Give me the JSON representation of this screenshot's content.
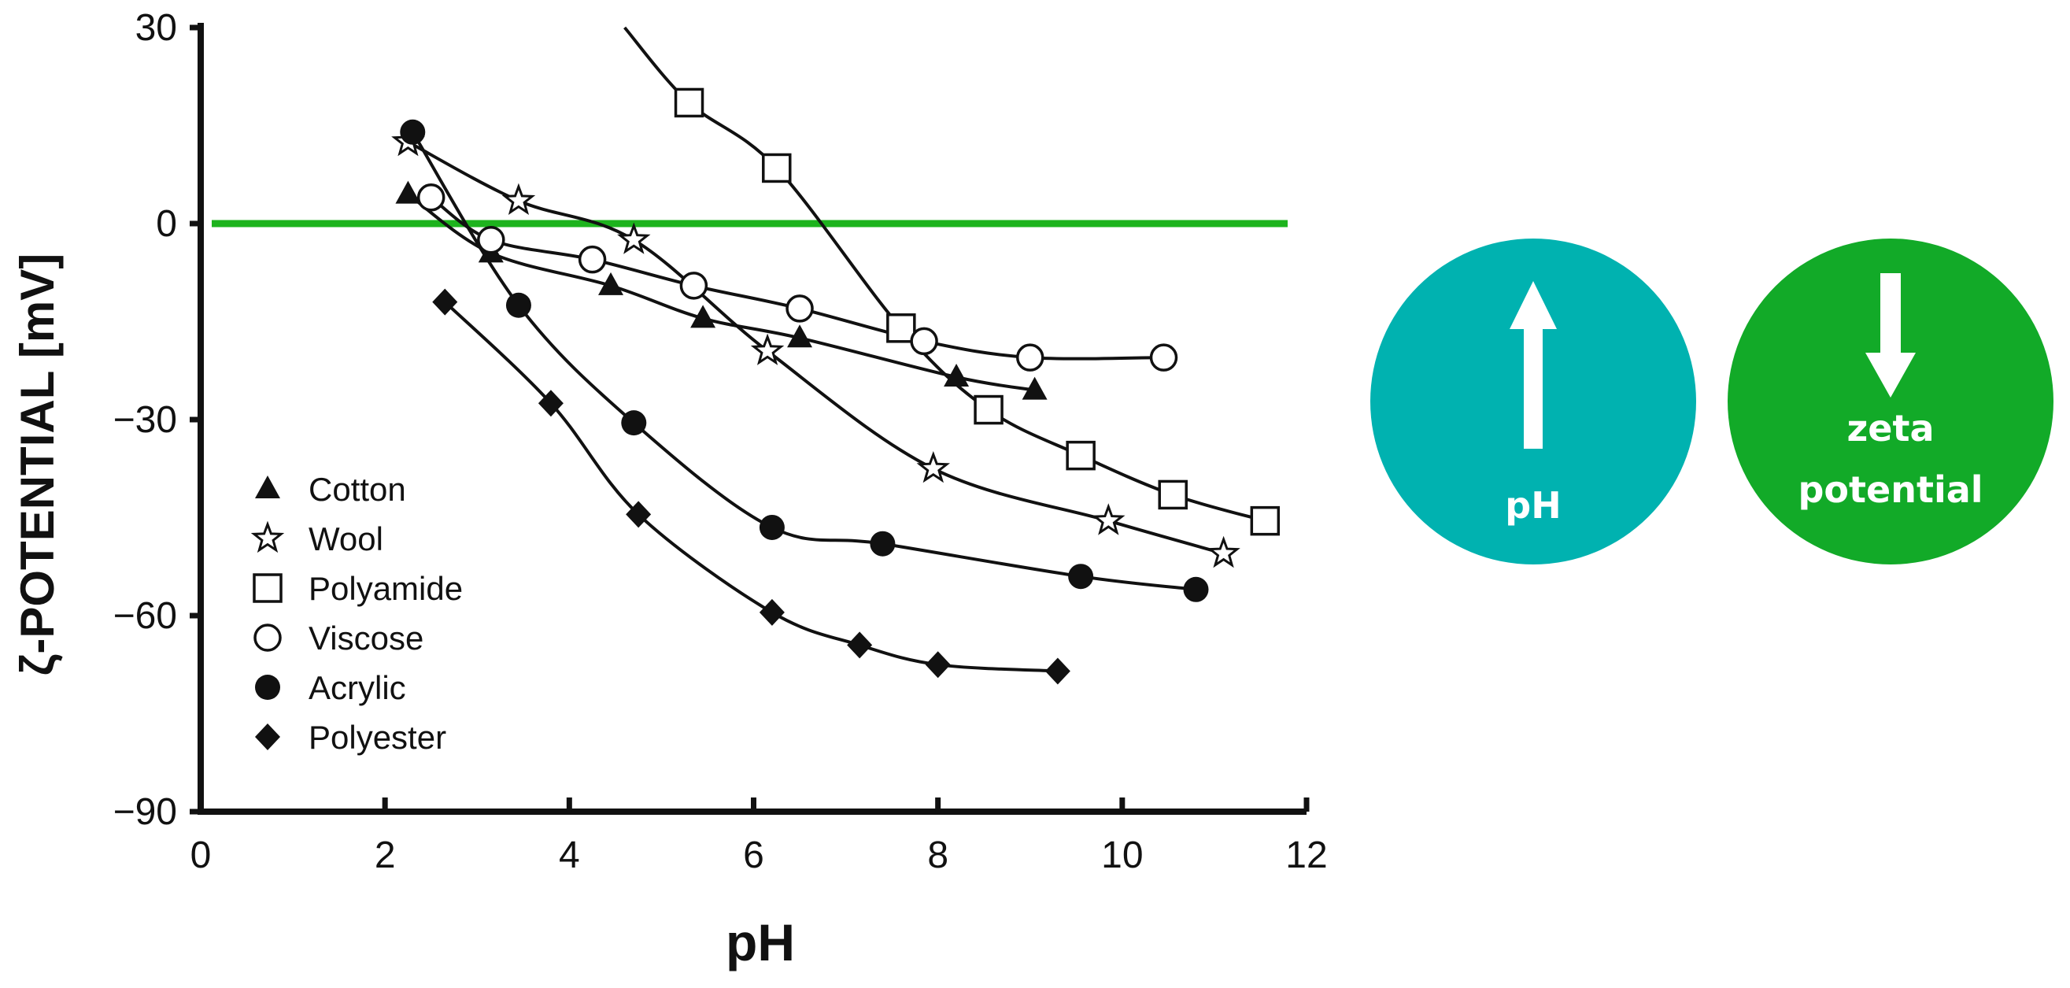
{
  "chart_data": {
    "type": "line",
    "title": "",
    "xlabel": "pH",
    "ylabel": "ζ-POTENTIAL [mV]",
    "xlim": [
      0,
      12
    ],
    "ylim": [
      -90,
      30
    ],
    "xticks": [
      0,
      2,
      4,
      6,
      8,
      10,
      12
    ],
    "yticks": [
      -90,
      -60,
      -30,
      0,
      30
    ],
    "xtick_labels": [
      "0",
      "2",
      "4",
      "6",
      "8",
      "10",
      "12"
    ],
    "ytick_labels": [
      "−90",
      "−60",
      "−30",
      "0",
      "30"
    ],
    "reference_line": {
      "y": 0,
      "color": "#1db31d"
    },
    "legend_position": "bottom-left",
    "series": [
      {
        "name": "Cotton",
        "marker": "triangle",
        "x": [
          2.25,
          3.15,
          4.45,
          5.45,
          6.5,
          8.2,
          9.05
        ],
        "y": [
          4.5,
          -4.5,
          -9.5,
          -14.5,
          -17.5,
          -23.5,
          -25.5
        ]
      },
      {
        "name": "Wool",
        "marker": "star",
        "x": [
          2.25,
          3.45,
          4.7,
          6.15,
          7.95,
          9.85,
          11.1
        ],
        "y": [
          12.5,
          3.5,
          -2.5,
          -19.5,
          -37.5,
          -45.5,
          -50.5
        ]
      },
      {
        "name": "Polyamide",
        "marker": "square",
        "x": [
          4.6,
          5.3,
          6.25,
          7.6,
          8.55,
          9.55,
          10.55,
          11.55
        ],
        "y": [
          30,
          18.5,
          8.5,
          -16,
          -28.5,
          -35.5,
          -41.5,
          -45.5
        ]
      },
      {
        "name": "Viscose",
        "marker": "circle-open",
        "x": [
          2.5,
          3.15,
          4.25,
          5.35,
          6.5,
          7.85,
          9.0,
          10.45
        ],
        "y": [
          4,
          -2.5,
          -5.5,
          -9.5,
          -13,
          -18,
          -20.5,
          -20.5
        ]
      },
      {
        "name": "Acrylic",
        "marker": "circle-filled",
        "x": [
          2.3,
          3.45,
          4.7,
          6.2,
          7.4,
          9.55,
          10.8
        ],
        "y": [
          14,
          -12.5,
          -30.5,
          -46.5,
          -49,
          -54,
          -56
        ]
      },
      {
        "name": "Polyester",
        "marker": "diamond",
        "x": [
          2.65,
          3.8,
          4.75,
          6.2,
          7.15,
          8.0,
          9.3
        ],
        "y": [
          -12,
          -27.5,
          -44.5,
          -59.5,
          -64.5,
          -67.5,
          -68.5
        ]
      }
    ]
  },
  "badges": {
    "ph": {
      "label": "pH",
      "color": "#00b2b0",
      "arrow": "up"
    },
    "zeta": {
      "line1": "zeta",
      "line2": "potential",
      "color": "#12aa28",
      "arrow": "down"
    }
  }
}
